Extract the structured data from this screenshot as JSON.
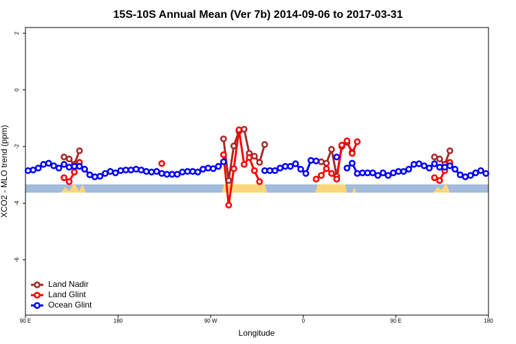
{
  "chart_data": {
    "type": "line",
    "title": "15S-10S Annual Mean (Ver 7b)   2014-09-06 to 2017-03-31",
    "xlabel": "Longitude",
    "ylabel": "XCO2 - MLO trend (ppm)",
    "xlim": [
      90,
      540
    ],
    "ylim": [
      -7.95,
      2.2
    ],
    "xticks": [
      {
        "value": 90,
        "label": "90 E"
      },
      180,
      {
        "value": 270,
        "label": "90 W"
      },
      {
        "value": 360,
        "label": "0"
      },
      {
        "value": 450,
        "label": "90 E"
      },
      {
        "value": 540,
        "label": "180"
      }
    ],
    "yticks": [
      -6,
      -4,
      -2,
      0,
      2
    ],
    "grid": false,
    "legend": "bottom-left",
    "x": [
      92.5,
      97.5,
      102.5,
      107.5,
      112.5,
      117.5,
      122.5,
      127.5,
      132.5,
      137.5,
      142.5,
      147.5,
      152.5,
      157.5,
      162.5,
      167.5,
      172.5,
      177.5,
      182.5,
      187.5,
      192.5,
      197.5,
      202.5,
      207.5,
      212.5,
      217.5,
      222.5,
      227.5,
      232.5,
      237.5,
      242.5,
      247.5,
      252.5,
      257.5,
      262.5,
      267.5,
      272.5,
      277.5,
      282.5,
      287.5,
      292.5,
      297.5,
      302.5,
      307.5,
      312.5,
      317.5,
      322.5,
      327.5,
      332.5,
      337.5,
      342.5,
      347.5,
      352.5,
      357.5,
      362.5,
      367.5,
      372.5,
      377.5,
      382.5,
      387.5,
      392.5,
      397.5,
      402.5,
      407.5,
      412.5,
      417.5,
      422.5,
      427.5,
      432.5,
      437.5,
      442.5,
      447.5,
      452.5,
      457.5,
      462.5,
      467.5,
      472.5,
      477.5,
      482.5,
      487.5,
      492.5,
      497.5,
      502.5,
      507.5,
      512.5,
      517.5,
      522.5,
      527.5,
      532.5,
      537.5
    ],
    "series": [
      {
        "name": "Land Nadir",
        "color": "#a52a2a",
        "values": [
          null,
          null,
          null,
          null,
          null,
          null,
          null,
          -2.37,
          -2.44,
          -2.63,
          -2.15,
          null,
          null,
          null,
          null,
          null,
          null,
          null,
          null,
          null,
          null,
          null,
          null,
          null,
          null,
          null,
          null,
          null,
          null,
          null,
          null,
          null,
          null,
          null,
          null,
          null,
          null,
          null,
          -1.73,
          -3.2,
          -1.98,
          -1.46,
          -1.39,
          -2.24,
          -2.34,
          -2.56,
          -1.93,
          null,
          null,
          null,
          null,
          null,
          null,
          null,
          null,
          null,
          null,
          -2.54,
          -2.59,
          -2.1,
          -3.05,
          -2.0,
          -1.85,
          -2.2,
          null,
          null,
          null,
          null,
          null,
          null,
          null,
          null,
          null,
          null,
          null,
          null,
          null,
          null,
          null,
          -2.37,
          -2.44,
          -2.63,
          -2.15,
          null,
          null,
          null,
          null,
          null,
          null,
          null
        ]
      },
      {
        "name": "Land Glint",
        "color": "#ff0000",
        "values": [
          null,
          null,
          null,
          null,
          null,
          null,
          null,
          -3.1,
          -3.24,
          -2.9,
          -2.56,
          null,
          null,
          null,
          null,
          null,
          null,
          null,
          null,
          null,
          null,
          null,
          null,
          null,
          null,
          null,
          -2.6,
          null,
          null,
          null,
          null,
          null,
          null,
          null,
          null,
          null,
          null,
          null,
          -2.29,
          -4.07,
          -2.78,
          -1.41,
          -2.63,
          -2.39,
          -2.85,
          -3.24,
          null,
          null,
          null,
          null,
          null,
          null,
          null,
          null,
          null,
          null,
          -3.15,
          -3.02,
          -2.78,
          -2.95,
          -3.15,
          -1.95,
          -1.8,
          -2.24,
          -1.83,
          null,
          null,
          null,
          null,
          null,
          null,
          null,
          null,
          null,
          null,
          null,
          null,
          null,
          null,
          -3.1,
          -3.2,
          -2.85,
          -2.56,
          null,
          null,
          null,
          null,
          null,
          null,
          null
        ]
      },
      {
        "name": "Ocean Glint",
        "color": "#0000ff",
        "values": [
          -2.85,
          -2.83,
          -2.76,
          -2.63,
          -2.59,
          -2.68,
          -2.76,
          -2.63,
          -2.73,
          -2.7,
          -2.7,
          -2.8,
          -3.0,
          -3.07,
          -3.05,
          -2.95,
          -2.88,
          -2.93,
          -2.85,
          -2.83,
          -2.83,
          -2.8,
          -2.83,
          -2.88,
          -2.9,
          -2.88,
          -2.95,
          -2.98,
          -2.98,
          -2.98,
          -2.9,
          -2.88,
          -2.88,
          -2.9,
          -2.8,
          -2.76,
          -2.78,
          -2.7,
          -2.54,
          null,
          null,
          null,
          null,
          null,
          null,
          null,
          -2.85,
          -2.85,
          -2.85,
          -2.76,
          -2.7,
          -2.7,
          -2.61,
          -2.8,
          -2.95,
          -2.49,
          -2.51,
          null,
          null,
          null,
          -2.37,
          null,
          -2.76,
          -2.59,
          -2.95,
          -2.93,
          -2.93,
          -2.93,
          -3.02,
          -2.93,
          -3.02,
          -2.93,
          -2.88,
          -2.88,
          -2.8,
          -2.63,
          -2.61,
          -2.68,
          -2.76,
          -2.61,
          -2.73,
          -2.73,
          -2.68,
          -2.8,
          -3.0,
          -3.07,
          -3.02,
          -2.93,
          -2.85,
          -2.95
        ]
      }
    ]
  }
}
